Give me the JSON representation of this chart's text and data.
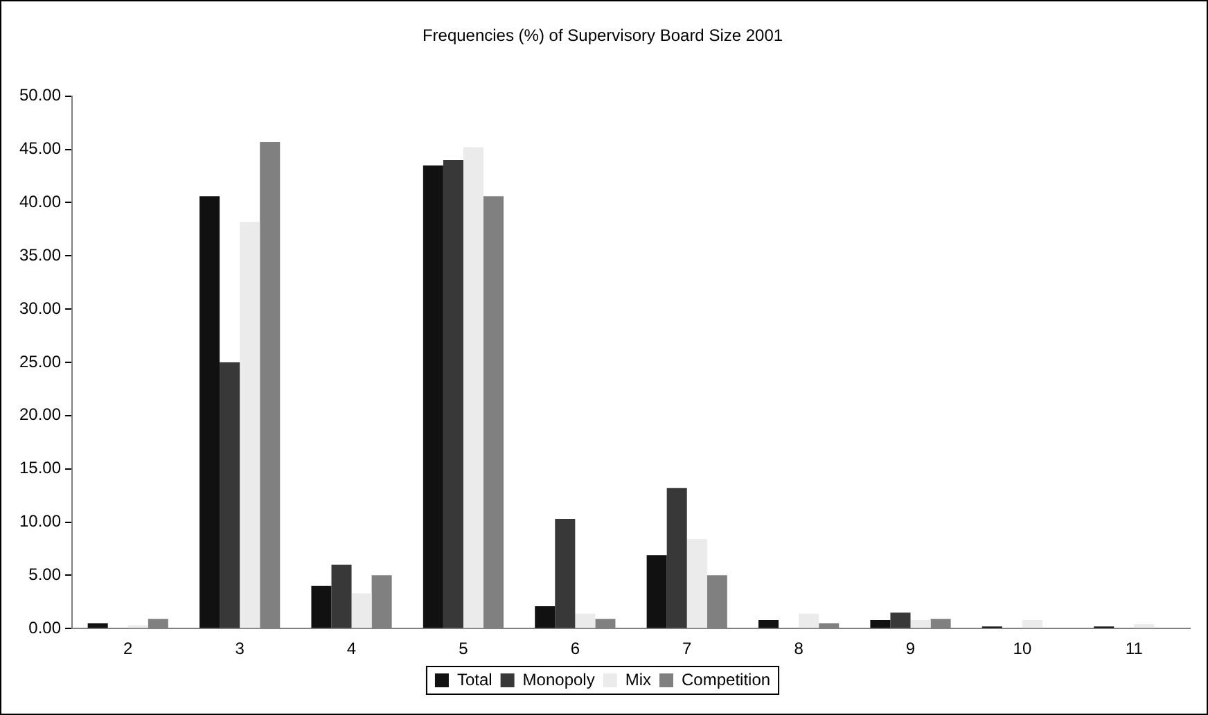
{
  "chart_data": {
    "type": "bar",
    "title": "Frequencies (%) of Supervisory Board Size 2001",
    "categories": [
      "2",
      "3",
      "4",
      "5",
      "6",
      "7",
      "8",
      "9",
      "10",
      "11"
    ],
    "series": [
      {
        "name": "Total",
        "color": "#111111",
        "values": [
          0.5,
          40.6,
          4.0,
          43.5,
          2.1,
          6.9,
          0.8,
          0.8,
          0.2,
          0.2
        ]
      },
      {
        "name": "Monopoly",
        "color": "#383838",
        "values": [
          0,
          25.0,
          6.0,
          44.0,
          10.3,
          13.2,
          0,
          1.5,
          0,
          0
        ]
      },
      {
        "name": "Mix",
        "color": "#ebebeb",
        "values": [
          0.3,
          38.2,
          3.3,
          45.2,
          1.4,
          8.4,
          1.4,
          0.8,
          0.8,
          0.4
        ]
      },
      {
        "name": "Competition",
        "color": "#808080",
        "values": [
          0.9,
          45.7,
          5.0,
          40.6,
          0.9,
          5.0,
          0.5,
          0.9,
          0,
          0
        ]
      }
    ],
    "ylim": [
      0,
      50
    ],
    "yticks": [
      {
        "value": 0,
        "label": "0.00"
      },
      {
        "value": 5,
        "label": "5.00"
      },
      {
        "value": 10,
        "label": "10.00"
      },
      {
        "value": 15,
        "label": "15.00"
      },
      {
        "value": 20,
        "label": "20.00"
      },
      {
        "value": 25,
        "label": "25.00"
      },
      {
        "value": 30,
        "label": "30.00"
      },
      {
        "value": 35,
        "label": "35.00"
      },
      {
        "value": 40,
        "label": "40.00"
      },
      {
        "value": 45,
        "label": "45.00"
      },
      {
        "value": 50,
        "label": "50.00"
      }
    ],
    "grid": false,
    "legend": "bottom"
  }
}
